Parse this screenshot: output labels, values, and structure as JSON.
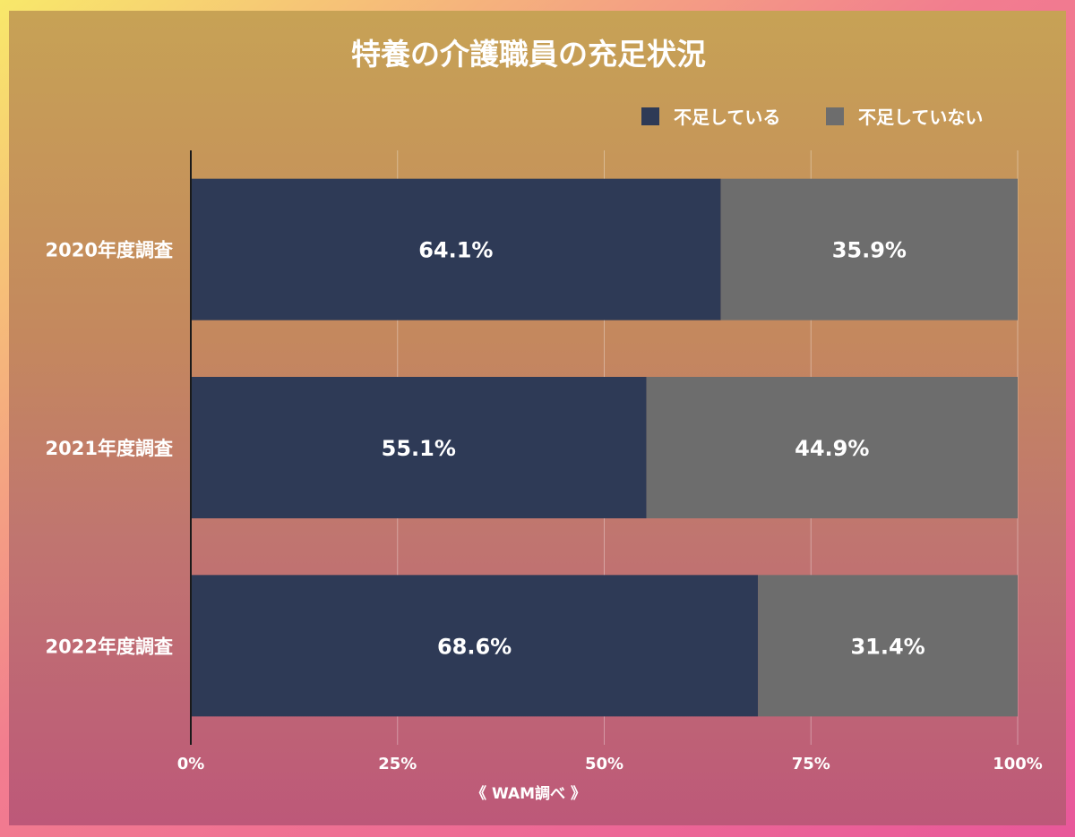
{
  "chart_data": {
    "type": "bar",
    "orientation": "horizontal",
    "stacked": true,
    "title": "特養の介護職員の充足状況",
    "categories": [
      "2020年度調査",
      "2021年度調査",
      "2022年度調査"
    ],
    "series": [
      {
        "name": "不足している",
        "values": [
          64.1,
          55.1,
          68.6
        ],
        "labels": [
          "64.1%",
          "55.1%",
          "68.6%"
        ],
        "color": "#2e3a56"
      },
      {
        "name": "不足していない",
        "values": [
          35.9,
          44.9,
          31.4
        ],
        "labels": [
          "35.9%",
          "44.9%",
          "31.4%"
        ],
        "color": "#6d6d6d"
      }
    ],
    "xlim": [
      0,
      100
    ],
    "xticks": [
      {
        "value": 0,
        "label": "0%"
      },
      {
        "value": 25,
        "label": "25%"
      },
      {
        "value": 50,
        "label": "50%"
      },
      {
        "value": 75,
        "label": "75%"
      },
      {
        "value": 100,
        "label": "100%"
      }
    ],
    "grid": true,
    "legend_position": "top-right",
    "source": "《 WAM調べ 》"
  }
}
